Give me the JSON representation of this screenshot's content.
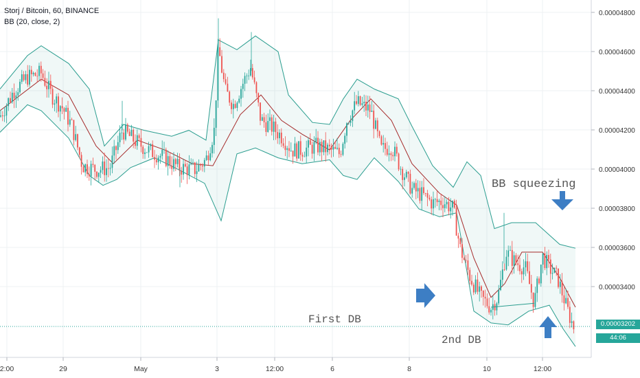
{
  "header": {
    "title": "Storj / Bitcoin, 60, BINANCE",
    "indicator": "BB (20, close, 2)"
  },
  "price_axis": {
    "ticks": [
      "0.00004800",
      "0.00004600",
      "0.00004400",
      "0.00004200",
      "0.00004000",
      "0.00003800",
      "0.00003600",
      "0.00003400"
    ],
    "last_price": "0.00003202",
    "countdown": "44:06"
  },
  "time_axis": {
    "ticks": [
      "2:00",
      "29",
      "May",
      "3",
      "12:00",
      "6",
      "8",
      "10",
      "12:00"
    ]
  },
  "annotations": {
    "bb_squeezing": "BB squeezing",
    "first_db": "First DB",
    "second_db": "2nd DB"
  },
  "colors": {
    "up": "#26a69a",
    "down": "#ef5350",
    "band": "#2a9d8f",
    "basis": "#a52a2a",
    "arrow": "#3d7ec4"
  },
  "chart_data": {
    "type": "candlestick",
    "title": "Storj / Bitcoin, 60, BINANCE",
    "indicator": "Bollinger Bands (20, close, 2)",
    "ylim": [
      3.08e-05,
      4.93e-05
    ],
    "last_price": 3.202e-05,
    "basis": [
      [
        0,
        4.3e-05
      ],
      [
        60,
        4.46e-05
      ],
      [
        100,
        4.38e-05
      ],
      [
        140,
        4.12e-05
      ],
      [
        165,
        4.03e-05
      ],
      [
        200,
        4.15e-05
      ],
      [
        240,
        4.1e-05
      ],
      [
        280,
        4.03e-05
      ],
      [
        310,
        4.02e-05
      ],
      [
        350,
        4.28e-05
      ],
      [
        380,
        4.38e-05
      ],
      [
        410,
        4.25e-05
      ],
      [
        440,
        4.18e-05
      ],
      [
        480,
        4.1e-05
      ],
      [
        510,
        4.25e-05
      ],
      [
        540,
        4.36e-05
      ],
      [
        570,
        4.25e-05
      ],
      [
        600,
        4.03e-05
      ],
      [
        640,
        3.88e-05
      ],
      [
        665,
        3.82e-05
      ],
      [
        690,
        3.55e-05
      ],
      [
        715,
        3.35e-05
      ],
      [
        735,
        3.42e-05
      ],
      [
        760,
        3.58e-05
      ],
      [
        790,
        3.58e-05
      ],
      [
        815,
        3.45e-05
      ],
      [
        838,
        3.3e-05
      ]
    ],
    "upper_band": [
      [
        0,
        4.41e-05
      ],
      [
        40,
        4.58e-05
      ],
      [
        60,
        4.63e-05
      ],
      [
        100,
        4.54e-05
      ],
      [
        130,
        4.41e-05
      ],
      [
        152,
        4.12e-05
      ],
      [
        180,
        4.23e-05
      ],
      [
        210,
        4.2e-05
      ],
      [
        250,
        4.17e-05
      ],
      [
        275,
        4.2e-05
      ],
      [
        300,
        4.15e-05
      ],
      [
        318,
        4.66e-05
      ],
      [
        345,
        4.61e-05
      ],
      [
        372,
        4.68e-05
      ],
      [
        405,
        4.6e-05
      ],
      [
        420,
        4.38e-05
      ],
      [
        455,
        4.24e-05
      ],
      [
        480,
        4.23e-05
      ],
      [
        500,
        4.36e-05
      ],
      [
        520,
        4.46e-05
      ],
      [
        545,
        4.41e-05
      ],
      [
        580,
        4.36e-05
      ],
      [
        600,
        4.22e-05
      ],
      [
        630,
        4.02e-05
      ],
      [
        660,
        3.91e-05
      ],
      [
        680,
        4.04e-05
      ],
      [
        700,
        3.97e-05
      ],
      [
        720,
        3.7e-05
      ],
      [
        745,
        3.73e-05
      ],
      [
        780,
        3.73e-05
      ],
      [
        815,
        3.62e-05
      ],
      [
        838,
        3.6e-05
      ]
    ],
    "lower_band": [
      [
        0,
        4.19e-05
      ],
      [
        40,
        4.33e-05
      ],
      [
        60,
        4.3e-05
      ],
      [
        100,
        4.16e-05
      ],
      [
        130,
        3.97e-05
      ],
      [
        150,
        3.92e-05
      ],
      [
        170,
        3.95e-05
      ],
      [
        190,
        4.01e-05
      ],
      [
        225,
        4.06e-05
      ],
      [
        260,
        4e-05
      ],
      [
        298,
        3.93e-05
      ],
      [
        322,
        3.74e-05
      ],
      [
        345,
        4.08e-05
      ],
      [
        372,
        4.11e-05
      ],
      [
        405,
        4.06e-05
      ],
      [
        440,
        4.03e-05
      ],
      [
        480,
        4.05e-05
      ],
      [
        500,
        3.97e-05
      ],
      [
        520,
        3.95e-05
      ],
      [
        545,
        4.06e-05
      ],
      [
        580,
        3.94e-05
      ],
      [
        610,
        3.8e-05
      ],
      [
        640,
        3.76e-05
      ],
      [
        665,
        3.78e-05
      ],
      [
        690,
        3.28e-05
      ],
      [
        715,
        3.22e-05
      ],
      [
        740,
        3.21e-05
      ],
      [
        770,
        3.28e-05
      ],
      [
        800,
        3.31e-05
      ],
      [
        820,
        3.19e-05
      ],
      [
        838,
        3.1e-05
      ]
    ],
    "close_path": [
      [
        0,
        4.27e-05
      ],
      [
        20,
        4.4e-05
      ],
      [
        40,
        4.47e-05
      ],
      [
        60,
        4.49e-05
      ],
      [
        75,
        4.38e-05
      ],
      [
        90,
        4.32e-05
      ],
      [
        105,
        4.22e-05
      ],
      [
        120,
        4.02e-05
      ],
      [
        140,
        4e-05
      ],
      [
        160,
        4.01e-05
      ],
      [
        178,
        4.2e-05
      ],
      [
        195,
        4.15e-05
      ],
      [
        215,
        4.1e-05
      ],
      [
        240,
        4.06e-05
      ],
      [
        260,
        4.01e-05
      ],
      [
        285,
        4e-05
      ],
      [
        300,
        4.05e-05
      ],
      [
        312,
        4.2e-05
      ],
      [
        318,
        4.62e-05
      ],
      [
        328,
        4.4e-05
      ],
      [
        340,
        4.33e-05
      ],
      [
        355,
        4.45e-05
      ],
      [
        365,
        4.52e-05
      ],
      [
        380,
        4.25e-05
      ],
      [
        395,
        4.22e-05
      ],
      [
        410,
        4.17e-05
      ],
      [
        425,
        4.1e-05
      ],
      [
        440,
        4.1e-05
      ],
      [
        460,
        4.12e-05
      ],
      [
        480,
        4.1e-05
      ],
      [
        495,
        4.08e-05
      ],
      [
        505,
        4.25e-05
      ],
      [
        520,
        4.34e-05
      ],
      [
        540,
        4.3e-05
      ],
      [
        555,
        4.1e-05
      ],
      [
        570,
        4.12e-05
      ],
      [
        585,
        4e-05
      ],
      [
        600,
        3.9e-05
      ],
      [
        615,
        3.87e-05
      ],
      [
        630,
        3.83e-05
      ],
      [
        645,
        3.84e-05
      ],
      [
        660,
        3.8e-05
      ],
      [
        670,
        3.6e-05
      ],
      [
        685,
        3.45e-05
      ],
      [
        700,
        3.35e-05
      ],
      [
        715,
        3.3e-05
      ],
      [
        725,
        3.35e-05
      ],
      [
        737,
        3.58e-05
      ],
      [
        750,
        3.53e-05
      ],
      [
        765,
        3.5e-05
      ],
      [
        778,
        3.32e-05
      ],
      [
        790,
        3.56e-05
      ],
      [
        800,
        3.5e-05
      ],
      [
        812,
        3.45e-05
      ],
      [
        825,
        3.3e-05
      ],
      [
        835,
        3.2e-05
      ]
    ],
    "double_bottom_line": [
      [
        715,
        3.3e-05
      ],
      [
        778,
        3.32e-05
      ]
    ]
  }
}
